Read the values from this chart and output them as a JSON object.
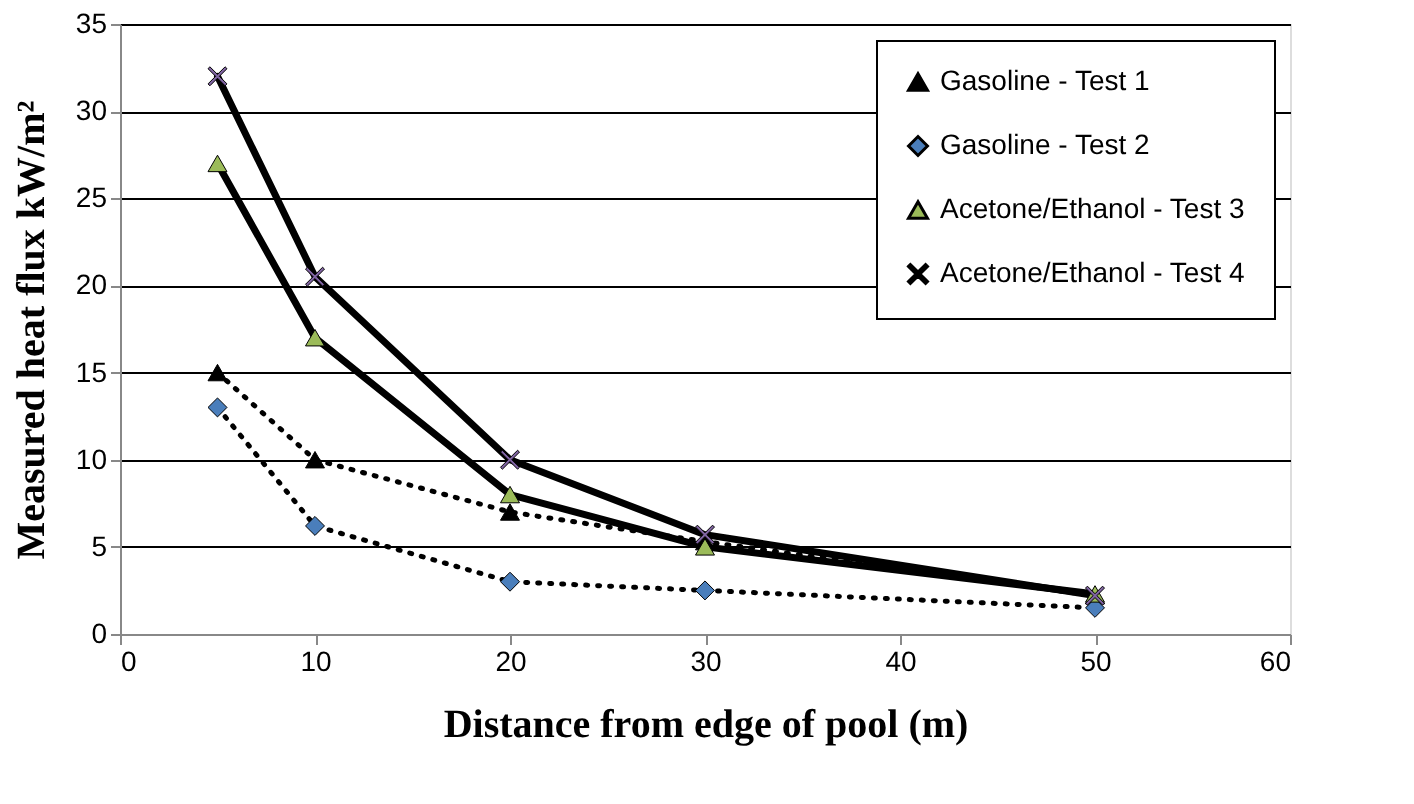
{
  "chart_data": {
    "type": "line",
    "xlabel": "Distance from edge of pool (m)",
    "ylabel": "Measured heat flux  kW/m²",
    "x": [
      5,
      10,
      20,
      30,
      50
    ],
    "series": [
      {
        "name": "Gasoline - Test 1",
        "color": "#000000",
        "marker": "triangle",
        "line_style": "dotted",
        "values": [
          15,
          10,
          7,
          5.3,
          2.2
        ]
      },
      {
        "name": "Gasoline - Test 2",
        "color": "#4a7ebb",
        "marker": "diamond",
        "line_style": "dotted",
        "values": [
          13,
          6.2,
          3,
          2.5,
          1.5
        ]
      },
      {
        "name": "Acetone/Ethanol - Test 3",
        "color": "#9bbb59",
        "marker": "triangle",
        "line_style": "solid",
        "values": [
          27,
          17,
          8,
          5,
          2.3
        ]
      },
      {
        "name": "Acetone/Ethanol - Test 4",
        "color": "#8064a2",
        "marker": "cross",
        "line_style": "solid",
        "values": [
          32,
          20.5,
          10,
          5.7,
          2.2
        ]
      }
    ],
    "xlim": [
      0,
      60
    ],
    "xticks": [
      0,
      10,
      20,
      30,
      40,
      50,
      60
    ],
    "ylim": [
      0,
      35
    ],
    "yticks": [
      0,
      5,
      10,
      15,
      20,
      25,
      30,
      35
    ],
    "grid": "y",
    "legend": "top right"
  }
}
